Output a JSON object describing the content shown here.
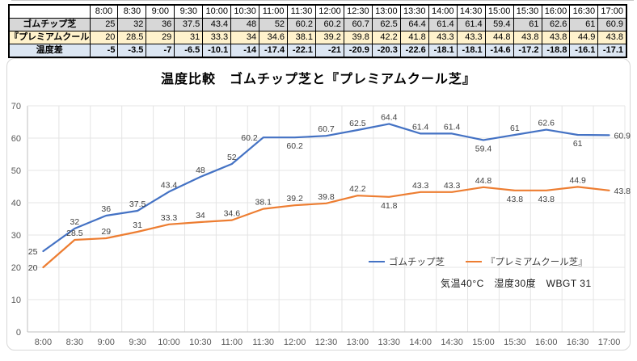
{
  "table": {
    "corner": "",
    "times": [
      "8:00",
      "8:30",
      "9:00",
      "9:30",
      "10:00",
      "10:30",
      "11:00",
      "11:30",
      "12:00",
      "12:30",
      "13:00",
      "13:30",
      "14:00",
      "14:30",
      "15:00",
      "15:30",
      "16:00",
      "16:30",
      "17:00"
    ],
    "rows": [
      {
        "label": "ゴムチップ芝",
        "bg": "#D7D7D7",
        "bold_values": false,
        "values": [
          25,
          32,
          36,
          37.5,
          43.4,
          48,
          52,
          60.2,
          60.2,
          60.7,
          62.5,
          64.4,
          61.4,
          61.4,
          59.4,
          61,
          62.6,
          61,
          60.9
        ]
      },
      {
        "label": "『プレミアムクール芝』",
        "bg": "#FFF2CC",
        "bold_values": false,
        "values": [
          20,
          28.5,
          29,
          31,
          33.3,
          34,
          34.6,
          38.1,
          39.2,
          39.8,
          42.2,
          41.8,
          43.3,
          43.3,
          44.8,
          43.8,
          43.8,
          44.9,
          43.8
        ]
      },
      {
        "label": "温度差",
        "bg": "#DCE6F2",
        "bold_values": true,
        "values": [
          -5,
          -3.5,
          -7,
          -6.5,
          -10.1,
          -14,
          -17.4,
          -22.1,
          -21,
          -20.9,
          -20.3,
          -22.6,
          -18.1,
          -18.1,
          -14.6,
          -17.2,
          -18.8,
          -16.1,
          -17.1
        ]
      }
    ]
  },
  "chart_data": {
    "type": "line",
    "title": "温度比較　ゴムチップ芝と『プレミアムクール芝』",
    "x": [
      "8:00",
      "8:30",
      "9:00",
      "9:30",
      "10:00",
      "10:30",
      "11:00",
      "11:30",
      "12:00",
      "12:30",
      "13:00",
      "13:30",
      "14:00",
      "14:30",
      "15:00",
      "15:30",
      "16:00",
      "16:30",
      "17:00"
    ],
    "series": [
      {
        "name": "ゴムチップ芝",
        "color": "#4472C4",
        "values": [
          25,
          32,
          36,
          37.5,
          43.4,
          48,
          52,
          60.2,
          60.2,
          60.7,
          62.5,
          64.4,
          61.4,
          61.4,
          59.4,
          61,
          62.6,
          61,
          60.9
        ],
        "label_pos": [
          "l",
          "a",
          "a",
          "a",
          "a",
          "a",
          "a",
          "l",
          "b",
          "a",
          "a",
          "a",
          "a",
          "a",
          "b",
          "a",
          "a",
          "b",
          "r"
        ]
      },
      {
        "name": "『プレミアムクール芝』",
        "color": "#ED7D31",
        "values": [
          20,
          28.5,
          29,
          31,
          33.3,
          34,
          34.6,
          38.1,
          39.2,
          39.8,
          42.2,
          41.8,
          43.3,
          43.3,
          44.8,
          43.8,
          43.8,
          44.9,
          43.8
        ],
        "label_pos": [
          "l",
          "a",
          "a",
          "a",
          "a",
          "a",
          "a",
          "a",
          "a",
          "a",
          "a",
          "b",
          "a",
          "a",
          "a",
          "b",
          "b",
          "a",
          "r"
        ]
      }
    ],
    "ylim": [
      0,
      70
    ],
    "yticks": [
      0,
      10,
      20,
      30,
      40,
      50,
      60,
      70
    ],
    "grid": true,
    "legend_position": "inside-right",
    "annotation": "気温40°C　湿度30度　WBGT 31",
    "grid_color": "#E4E4E4",
    "axis_color": "#BFBFBF",
    "tick_color": "#595959",
    "label_color": "#404040"
  }
}
